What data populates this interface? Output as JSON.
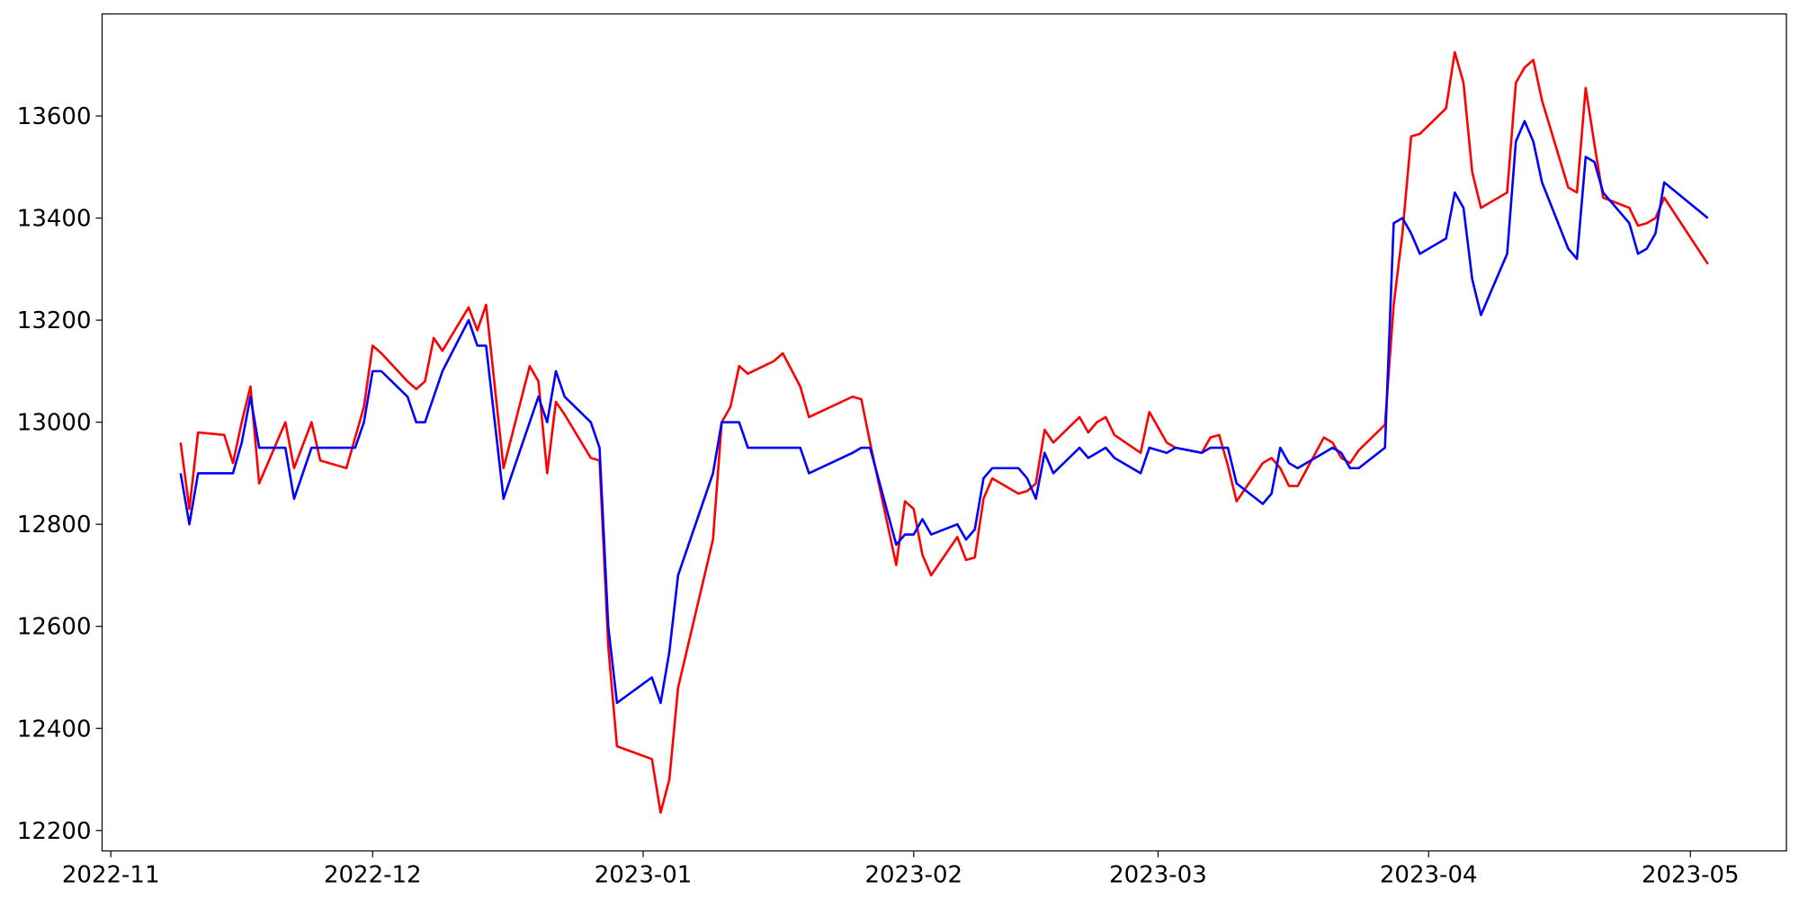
{
  "chart_data": {
    "type": "line",
    "x": [
      "2022-11-09",
      "2022-11-10",
      "2022-11-11",
      "2022-11-14",
      "2022-11-15",
      "2022-11-16",
      "2022-11-17",
      "2022-11-18",
      "2022-11-21",
      "2022-11-22",
      "2022-11-24",
      "2022-11-25",
      "2022-11-28",
      "2022-11-29",
      "2022-11-30",
      "2022-12-01",
      "2022-12-02",
      "2022-12-05",
      "2022-12-06",
      "2022-12-07",
      "2022-12-08",
      "2022-12-09",
      "2022-12-12",
      "2022-12-13",
      "2022-12-14",
      "2022-12-16",
      "2022-12-19",
      "2022-12-20",
      "2022-12-21",
      "2022-12-22",
      "2022-12-23",
      "2022-12-26",
      "2022-12-27",
      "2022-12-28",
      "2022-12-29",
      "2023-01-02",
      "2023-01-03",
      "2023-01-04",
      "2023-01-05",
      "2023-01-09",
      "2023-01-10",
      "2023-01-11",
      "2023-01-12",
      "2023-01-13",
      "2023-01-16",
      "2023-01-17",
      "2023-01-19",
      "2023-01-20",
      "2023-01-25",
      "2023-01-26",
      "2023-01-27",
      "2023-01-30",
      "2023-01-31",
      "2023-02-01",
      "2023-02-02",
      "2023-02-03",
      "2023-02-06",
      "2023-02-07",
      "2023-02-08",
      "2023-02-09",
      "2023-02-10",
      "2023-02-13",
      "2023-02-14",
      "2023-02-15",
      "2023-02-16",
      "2023-02-17",
      "2023-02-20",
      "2023-02-21",
      "2023-02-22",
      "2023-02-23",
      "2023-02-24",
      "2023-02-27",
      "2023-02-28",
      "2023-03-02",
      "2023-03-03",
      "2023-03-06",
      "2023-03-07",
      "2023-03-08",
      "2023-03-09",
      "2023-03-10",
      "2023-03-13",
      "2023-03-14",
      "2023-03-15",
      "2023-03-16",
      "2023-03-17",
      "2023-03-20",
      "2023-03-21",
      "2023-03-22",
      "2023-03-23",
      "2023-03-24",
      "2023-03-27",
      "2023-03-28",
      "2023-03-29",
      "2023-03-30",
      "2023-03-31",
      "2023-04-03",
      "2023-04-04",
      "2023-04-05",
      "2023-04-06",
      "2023-04-07",
      "2023-04-10",
      "2023-04-11",
      "2023-04-12",
      "2023-04-13",
      "2023-04-14",
      "2023-04-17",
      "2023-04-18",
      "2023-04-19",
      "2023-04-20",
      "2023-04-21",
      "2023-04-24",
      "2023-04-25",
      "2023-04-26",
      "2023-04-27",
      "2023-04-28",
      "2023-05-03"
    ],
    "series": [
      {
        "color": "#ff0000",
        "values": [
          12960,
          12830,
          12980,
          12975,
          12920,
          13000,
          13070,
          12880,
          13000,
          12910,
          13000,
          12925,
          12910,
          12970,
          13030,
          13150,
          13135,
          13080,
          13065,
          13080,
          13165,
          13140,
          13225,
          13180,
          13230,
          12910,
          13110,
          13080,
          12900,
          13040,
          13015,
          12930,
          12925,
          12560,
          12365,
          12340,
          12235,
          12300,
          12480,
          12770,
          13000,
          13030,
          13110,
          13095,
          13120,
          13135,
          13070,
          13010,
          13050,
          13045,
          12960,
          12720,
          12845,
          12830,
          12740,
          12700,
          12775,
          12730,
          12735,
          12850,
          12890,
          12860,
          12865,
          12880,
          12985,
          12960,
          13010,
          12980,
          13000,
          13010,
          12975,
          12940,
          13020,
          12960,
          12950,
          12940,
          12970,
          12975,
          12915,
          12845,
          12920,
          12930,
          12910,
          12875,
          12875,
          12970,
          12960,
          12930,
          12920,
          12945,
          12995,
          13230,
          13370,
          13560,
          13565,
          13615,
          13725,
          13665,
          13490,
          13420,
          13450,
          13665,
          13695,
          13710,
          13630,
          13460,
          13450,
          13655,
          13545,
          13440,
          13420,
          13385,
          13390,
          13400,
          13440,
          13310
        ]
      },
      {
        "color": "#0000ff",
        "values": [
          12900,
          12800,
          12900,
          12900,
          12900,
          12960,
          13050,
          12950,
          12950,
          12850,
          12950,
          12950,
          12950,
          12950,
          13000,
          13100,
          13100,
          13050,
          13000,
          13000,
          13050,
          13100,
          13200,
          13150,
          13150,
          12850,
          13000,
          13050,
          13000,
          13100,
          13050,
          13000,
          12950,
          12600,
          12450,
          12500,
          12450,
          12550,
          12700,
          12900,
          13000,
          13000,
          13000,
          12950,
          12950,
          12950,
          12950,
          12900,
          12940,
          12950,
          12950,
          12760,
          12780,
          12780,
          12810,
          12780,
          12800,
          12770,
          12790,
          12890,
          12910,
          12910,
          12890,
          12850,
          12940,
          12900,
          12950,
          12930,
          12940,
          12950,
          12930,
          12900,
          12950,
          12940,
          12950,
          12940,
          12950,
          12950,
          12950,
          12880,
          12840,
          12860,
          12950,
          12920,
          12910,
          12940,
          12950,
          12940,
          12910,
          12910,
          12950,
          13390,
          13400,
          13370,
          13330,
          13360,
          13450,
          13420,
          13280,
          13210,
          13330,
          13550,
          13590,
          13550,
          13470,
          13340,
          13320,
          13520,
          13510,
          13450,
          13390,
          13330,
          13340,
          13370,
          13470,
          13400
        ]
      }
    ],
    "xlim": [
      "2022-10-31",
      "2023-05-12"
    ],
    "xticks": [
      {
        "value": "2022-11-01",
        "label": "2022-11"
      },
      {
        "value": "2022-12-01",
        "label": "2022-12"
      },
      {
        "value": "2023-01-01",
        "label": "2023-01"
      },
      {
        "value": "2023-02-01",
        "label": "2023-02"
      },
      {
        "value": "2023-03-01",
        "label": "2023-03"
      },
      {
        "value": "2023-04-01",
        "label": "2023-04"
      },
      {
        "value": "2023-05-01",
        "label": "2023-05"
      }
    ],
    "ylim": [
      12160,
      13800
    ],
    "yticks": [
      12200,
      12400,
      12600,
      12800,
      13000,
      13200,
      13400,
      13600
    ],
    "grid": false
  }
}
